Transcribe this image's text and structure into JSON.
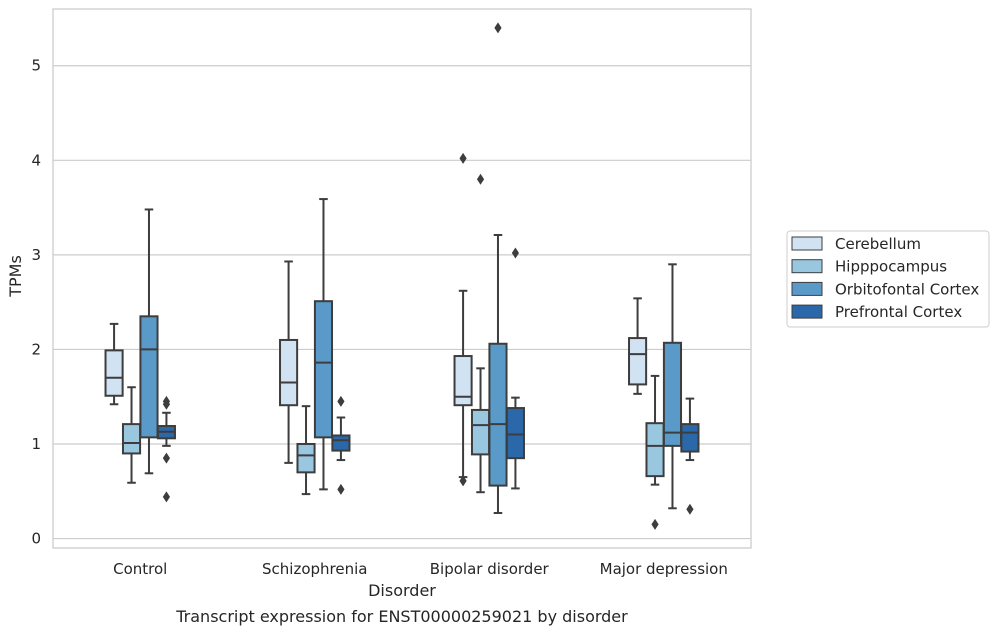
{
  "chart_data": {
    "type": "box",
    "title": "Transcript expression for ENST00000259021 by disorder",
    "xlabel": "Disorder",
    "ylabel": "TPMs",
    "ylim": [
      -0.1,
      5.6
    ],
    "yticks": [
      0,
      1,
      2,
      3,
      4,
      5
    ],
    "grid": "horizontal",
    "legend_position": "right",
    "categories": [
      "Control",
      "Schizophrenia",
      "Bipolar disorder",
      "Major depression"
    ],
    "series": [
      {
        "name": "Cerebellum",
        "color": "#d1e2f2",
        "boxes": [
          {
            "whisker_low": 1.42,
            "q1": 1.51,
            "median": 1.7,
            "q3": 1.99,
            "whisker_high": 2.27,
            "outliers": []
          },
          {
            "whisker_low": 0.8,
            "q1": 1.41,
            "median": 1.65,
            "q3": 2.1,
            "whisker_high": 2.93,
            "outliers": []
          },
          {
            "whisker_low": 0.65,
            "q1": 1.41,
            "median": 1.5,
            "q3": 1.93,
            "whisker_high": 2.62,
            "outliers": [
              0.61,
              4.02
            ]
          },
          {
            "whisker_low": 1.53,
            "q1": 1.63,
            "median": 1.95,
            "q3": 2.12,
            "whisker_high": 2.54,
            "outliers": []
          }
        ]
      },
      {
        "name": "Hipppocampus",
        "color": "#9ac7e0",
        "boxes": [
          {
            "whisker_low": 0.59,
            "q1": 0.9,
            "median": 1.01,
            "q3": 1.21,
            "whisker_high": 1.6,
            "outliers": []
          },
          {
            "whisker_low": 0.47,
            "q1": 0.7,
            "median": 0.88,
            "q3": 1.0,
            "whisker_high": 1.4,
            "outliers": []
          },
          {
            "whisker_low": 0.49,
            "q1": 0.89,
            "median": 1.2,
            "q3": 1.36,
            "whisker_high": 1.8,
            "outliers": [
              3.8
            ]
          },
          {
            "whisker_low": 0.57,
            "q1": 0.66,
            "median": 0.98,
            "q3": 1.22,
            "whisker_high": 1.72,
            "outliers": [
              0.15
            ]
          }
        ]
      },
      {
        "name": "Orbitofontal Cortex",
        "color": "#5a9ac8",
        "boxes": [
          {
            "whisker_low": 0.69,
            "q1": 1.07,
            "median": 2.0,
            "q3": 2.35,
            "whisker_high": 3.48,
            "outliers": []
          },
          {
            "whisker_low": 0.52,
            "q1": 1.07,
            "median": 1.86,
            "q3": 2.51,
            "whisker_high": 3.59,
            "outliers": []
          },
          {
            "whisker_low": 0.27,
            "q1": 0.56,
            "median": 1.21,
            "q3": 2.06,
            "whisker_high": 3.21,
            "outliers": [
              5.4
            ]
          },
          {
            "whisker_low": 0.32,
            "q1": 0.98,
            "median": 1.12,
            "q3": 2.07,
            "whisker_high": 2.9,
            "outliers": []
          }
        ]
      },
      {
        "name": "Prefrontal Cortex",
        "color": "#2a68a9",
        "boxes": [
          {
            "whisker_low": 0.98,
            "q1": 1.06,
            "median": 1.13,
            "q3": 1.19,
            "whisker_high": 1.33,
            "outliers": [
              0.44,
              0.85,
              1.42,
              1.45
            ]
          },
          {
            "whisker_low": 0.83,
            "q1": 0.93,
            "median": 1.04,
            "q3": 1.09,
            "whisker_high": 1.28,
            "outliers": [
              0.52,
              1.45
            ]
          },
          {
            "whisker_low": 0.53,
            "q1": 0.85,
            "median": 1.1,
            "q3": 1.38,
            "whisker_high": 1.49,
            "outliers": [
              3.02
            ]
          },
          {
            "whisker_low": 0.83,
            "q1": 0.92,
            "median": 1.12,
            "q3": 1.21,
            "whisker_high": 1.48,
            "outliers": [
              0.31
            ]
          }
        ]
      }
    ]
  }
}
